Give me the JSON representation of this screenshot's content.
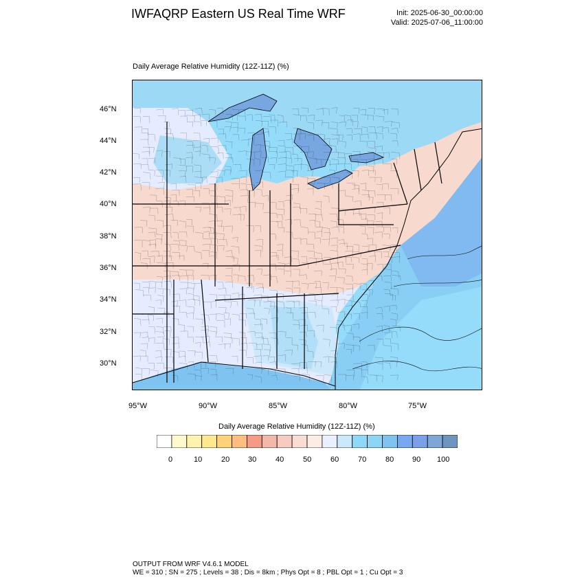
{
  "header": {
    "title": "IWFAQRP Eastern US Real Time WRF",
    "init": "Init: 2025-06-30_00:00:00",
    "valid": "Valid: 2025-07-06_11:00:00"
  },
  "panel": {
    "title": "Daily Average Relative Humidity (12Z-11Z)   (%)"
  },
  "map": {
    "lat_labels": [
      "46°N",
      "44°N",
      "42°N",
      "40°N",
      "38°N",
      "36°N",
      "34°N",
      "32°N",
      "30°N"
    ],
    "lon_labels": [
      "95°W",
      "90°W",
      "85°W",
      "80°W",
      "75°W"
    ],
    "colors": {
      "land_dry": "#f7d9cd",
      "land_mid": "#e6ecff",
      "land_moist": "#9cd9f5",
      "lake": "#78a6e0",
      "ocean_near": "#7fc4f0",
      "ocean_far": "#95dcfa",
      "ocean_deep": "#82aef0"
    }
  },
  "legend": {
    "title": "Daily Average Relative Humidity (12Z-11Z)  (%)",
    "colors": [
      "#ffffff",
      "#fffacd",
      "#fff3b0",
      "#ffe88f",
      "#ffd27a",
      "#ffbd80",
      "#f59a86",
      "#f4b8aa",
      "#f7cbbf",
      "#f9ddd2",
      "#fcece6",
      "#eaf0ff",
      "#cde8fb",
      "#8fd8f7",
      "#8cd5f7",
      "#7fc4f0",
      "#7aa8f0",
      "#7b9fe8",
      "#7ea6d6",
      "#6d95c0"
    ],
    "labels": [
      "0",
      "10",
      "20",
      "30",
      "40",
      "50",
      "60",
      "70",
      "80",
      "90",
      "100"
    ]
  },
  "footer": {
    "line1": "OUTPUT FROM WRF V4.6.1 MODEL",
    "line2": "WE = 310 ; SN = 275 ; Levels = 38 ; Dis = 8km ; Phys Opt = 8 ; PBL Opt = 1 ; Cu Opt = 3"
  }
}
